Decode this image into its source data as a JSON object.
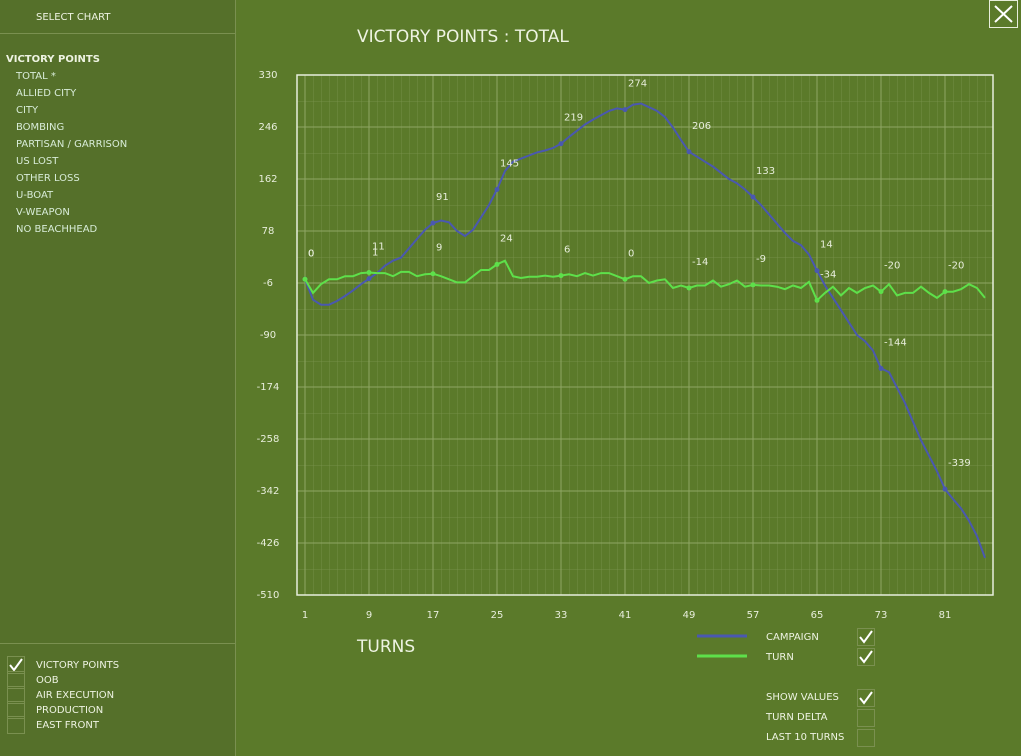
{
  "sidebar": {
    "header": "SELECT CHART",
    "group": "VICTORY POINTS",
    "items": [
      "TOTAL *",
      "ALLIED CITY",
      "CITY",
      "BOMBING",
      "PARTISAN / GARRISON",
      "US LOST",
      "OTHER LOSS",
      "U-BOAT",
      "V-WEAPON",
      "NO BEACHHEAD"
    ],
    "chart_types": [
      {
        "label": "VICTORY POINTS",
        "checked": true
      },
      {
        "label": "OOB",
        "checked": false
      },
      {
        "label": "AIR EXECUTION",
        "checked": false
      },
      {
        "label": "PRODUCTION",
        "checked": false
      },
      {
        "label": "EAST FRONT",
        "checked": false
      }
    ]
  },
  "chart_data": {
    "type": "line",
    "title": "VICTORY POINTS : TOTAL",
    "x_label": "TURNS",
    "x": [
      1,
      2,
      3,
      4,
      5,
      6,
      7,
      8,
      9,
      10,
      11,
      12,
      13,
      14,
      15,
      16,
      17,
      18,
      19,
      20,
      21,
      22,
      23,
      24,
      25,
      26,
      27,
      28,
      29,
      30,
      31,
      32,
      33,
      34,
      35,
      36,
      37,
      38,
      39,
      40,
      41,
      42,
      43,
      44,
      45,
      46,
      47,
      48,
      49,
      50,
      51,
      52,
      53,
      54,
      55,
      56,
      57,
      58,
      59,
      60,
      61,
      62,
      63,
      64,
      65,
      66,
      67,
      68,
      69,
      70,
      71,
      72,
      73,
      74,
      75,
      76,
      77,
      78,
      79,
      80,
      81,
      82,
      83,
      84,
      85,
      86
    ],
    "xlim": [
      0,
      87
    ],
    "xticks": [
      1,
      9,
      17,
      25,
      33,
      41,
      49,
      57,
      65,
      73,
      81
    ],
    "ylim": [
      -510,
      330
    ],
    "yticks": [
      330,
      246,
      162,
      78,
      -6,
      -90,
      -174,
      -258,
      -342,
      -426,
      -510
    ],
    "grid": true,
    "series": [
      {
        "name": "CAMPAIGN",
        "color": "#4a58b0",
        "checked": true,
        "values": [
          0,
          -33,
          -41,
          -41,
          -35,
          -27,
          -18,
          -8,
          1,
          10,
          22,
          30,
          35,
          50,
          65,
          80,
          91,
          95,
          92,
          78,
          70,
          80,
          100,
          120,
          145,
          175,
          190,
          195,
          200,
          205,
          208,
          212,
          219,
          230,
          240,
          250,
          258,
          265,
          272,
          276,
          274,
          282,
          284,
          278,
          272,
          262,
          245,
          225,
          206,
          198,
          190,
          182,
          172,
          162,
          155,
          145,
          133,
          120,
          105,
          90,
          75,
          62,
          55,
          40,
          14,
          -10,
          -30,
          -50,
          -70,
          -90,
          -100,
          -115,
          -144,
          -150,
          -175,
          -200,
          -230,
          -260,
          -285,
          -310,
          -339,
          -355,
          -370,
          -390,
          -415,
          -450
        ]
      },
      {
        "name": "TURN",
        "color": "#5ee04a",
        "checked": true,
        "values": [
          0,
          -22,
          -8,
          0,
          0,
          5,
          5,
          10,
          11,
          10,
          10,
          5,
          12,
          12,
          5,
          8,
          9,
          5,
          0,
          -5,
          -5,
          5,
          15,
          15,
          24,
          30,
          5,
          2,
          4,
          4,
          6,
          4,
          6,
          8,
          5,
          10,
          6,
          10,
          10,
          5,
          0,
          5,
          5,
          -6,
          -2,
          0,
          -14,
          -10,
          -14,
          -10,
          -10,
          -2,
          -12,
          -8,
          -2,
          -12,
          -9,
          -10,
          -10,
          -12,
          -16,
          -10,
          -14,
          -4,
          -34,
          -22,
          -12,
          -26,
          -14,
          -22,
          -14,
          -10,
          -20,
          -8,
          -26,
          -22,
          -22,
          -12,
          -22,
          -30,
          -20,
          -20,
          -16,
          -8,
          -14,
          -30
        ]
      }
    ]
  },
  "options": [
    {
      "label": "SHOW VALUES",
      "checked": true
    },
    {
      "label": "TURN DELTA",
      "checked": false
    },
    {
      "label": "LAST 10 TURNS",
      "checked": false
    }
  ]
}
